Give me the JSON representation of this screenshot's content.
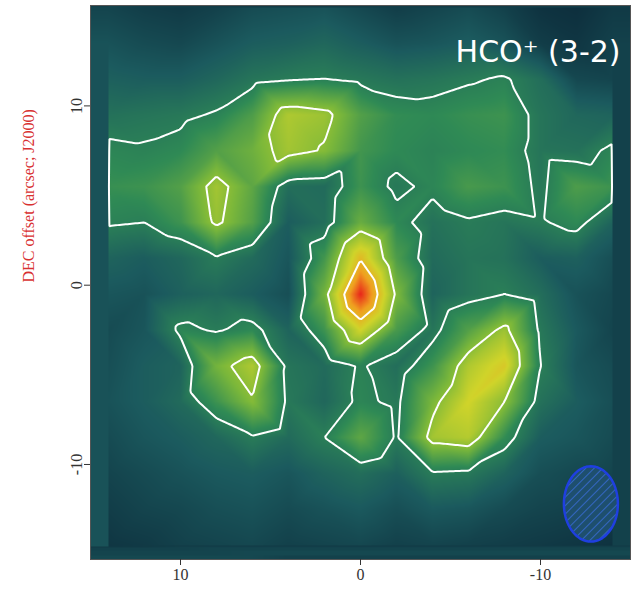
{
  "chart_data": {
    "type": "heatmap",
    "title": "HCO⁺ (3-2)",
    "ylabel": "DEC offset (arcsec; J2000)",
    "xlim": [
      15,
      -15
    ],
    "ylim": [
      -15.3,
      15.6
    ],
    "xticks": [
      10,
      0,
      -10
    ],
    "yticks": [
      10,
      0,
      -10
    ],
    "x": [
      14,
      12,
      10,
      8,
      6,
      4,
      2,
      0,
      -2,
      -4,
      -6,
      -8,
      -10,
      -12,
      -14
    ],
    "y": [
      15.5,
      13.5,
      11.5,
      9.5,
      7.5,
      5.5,
      3.5,
      1.5,
      -0.5,
      -2.5,
      -4.5,
      -6.5,
      -8.5,
      -10.5,
      -12.5,
      -14.5
    ],
    "cells": [
      [
        2.3,
        2.1,
        2.0,
        2.2,
        2.5,
        2.6,
        2.7,
        2.4,
        2.1,
        2.3,
        2.5,
        2.2,
        1.8,
        1.7,
        2.0
      ],
      [
        2.7,
        2.5,
        2.4,
        2.7,
        3.0,
        3.1,
        3.3,
        3.0,
        2.7,
        2.8,
        3.0,
        2.7,
        2.1,
        1.9,
        2.2
      ],
      [
        3.1,
        3.0,
        3.0,
        3.3,
        3.7,
        3.9,
        4.0,
        3.8,
        3.6,
        3.7,
        3.9,
        4.1,
        3.5,
        2.4,
        2.3
      ],
      [
        3.6,
        3.7,
        3.8,
        4.1,
        4.9,
        6.6,
        6.3,
        5.0,
        4.4,
        4.3,
        4.5,
        4.6,
        3.7,
        3.3,
        3.2
      ],
      [
        4.2,
        4.1,
        4.3,
        5.0,
        5.5,
        6.4,
        5.9,
        4.7,
        4.3,
        4.1,
        4.3,
        4.4,
        3.7,
        3.6,
        4.2
      ],
      [
        4.5,
        4.6,
        5.0,
        6.4,
        5.2,
        3.5,
        3.4,
        4.6,
        3.8,
        4.2,
        4.8,
        4.6,
        3.8,
        4.9,
        4.6
      ],
      [
        4.1,
        4.0,
        4.6,
        6.2,
        5.0,
        3.0,
        3.5,
        5.4,
        4.3,
        3.6,
        3.9,
        3.7,
        3.9,
        4.3,
        3.2
      ],
      [
        3.2,
        3.0,
        3.3,
        3.9,
        3.4,
        2.8,
        4.7,
        7.9,
        4.9,
        3.4,
        3.7,
        3.6,
        3.0,
        3.1,
        2.6
      ],
      [
        2.8,
        2.7,
        3.1,
        3.3,
        3.0,
        2.6,
        5.6,
        10,
        5.8,
        3.2,
        3.7,
        4.0,
        3.5,
        2.7,
        2.4
      ],
      [
        2.5,
        2.8,
        4.2,
        3.9,
        4.3,
        3.2,
        4.6,
        7.2,
        4.8,
        3.7,
        5.0,
        6.3,
        3.8,
        2.9,
        2.3
      ],
      [
        2.6,
        3.0,
        3.2,
        5.6,
        6.6,
        3.7,
        3.4,
        4.1,
        3.5,
        4.6,
        6.6,
        7.5,
        4.0,
        2.8,
        2.5
      ],
      [
        2.7,
        3.0,
        3.4,
        4.6,
        5.9,
        3.8,
        3.3,
        4.2,
        3.8,
        5.7,
        7.2,
        6.0,
        3.6,
        3.0,
        2.6
      ],
      [
        2.5,
        2.8,
        3.0,
        3.3,
        3.9,
        3.4,
        4.0,
        5.2,
        3.9,
        6.4,
        6.7,
        4.4,
        3.0,
        2.8,
        2.5
      ],
      [
        2.3,
        2.5,
        2.7,
        2.9,
        3.0,
        2.8,
        3.2,
        3.5,
        3.1,
        3.9,
        3.8,
        3.2,
        2.6,
        2.4,
        2.3
      ],
      [
        2.1,
        2.3,
        2.4,
        2.6,
        2.7,
        2.5,
        2.7,
        2.9,
        2.6,
        2.9,
        2.8,
        2.5,
        2.3,
        2.2,
        2.1
      ],
      [
        1.9,
        2.0,
        2.2,
        2.3,
        2.4,
        2.2,
        2.3,
        2.4,
        2.2,
        2.3,
        2.2,
        2.1,
        2.0,
        1.9,
        1.8
      ]
    ],
    "color_range": [
      1.5,
      10
    ],
    "contour_levels": [
      4,
      6,
      8
    ],
    "beam": {
      "x": -12.8,
      "y": -12.2,
      "major": 4.2,
      "minor": 3.0
    }
  }
}
